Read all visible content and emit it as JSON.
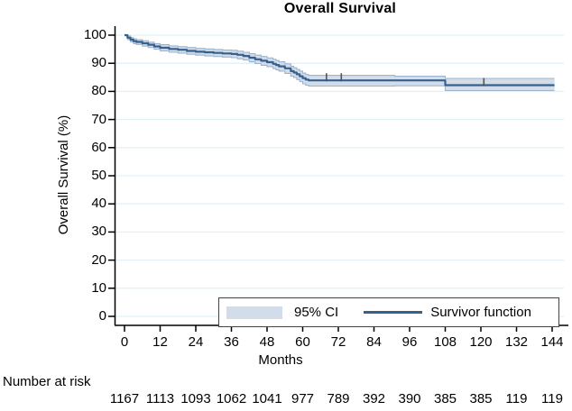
{
  "chart_data": {
    "type": "line",
    "subtype": "kaplan-meier-step",
    "title": "Overall Survival",
    "xlabel": "Months",
    "ylabel": "Overall Survival (%)",
    "xlim": [
      0,
      144
    ],
    "ylim": [
      0,
      100
    ],
    "x_ticks": [
      0,
      12,
      24,
      36,
      48,
      60,
      72,
      84,
      96,
      108,
      120,
      132,
      144
    ],
    "y_ticks": [
      0,
      10,
      20,
      30,
      40,
      50,
      60,
      70,
      80,
      90,
      100
    ],
    "grid": "horizontal-light",
    "legend": {
      "position": "inside-bottom-right",
      "ci_label": "95% CI",
      "survivor_label": "Survivor function"
    },
    "series": [
      {
        "name": "Survivor function",
        "style": "step-line",
        "points": [
          [
            0,
            100
          ],
          [
            1,
            99.1
          ],
          [
            2,
            98.4
          ],
          [
            3,
            97.9
          ],
          [
            4,
            97.6
          ],
          [
            6,
            97.1
          ],
          [
            8,
            96.6
          ],
          [
            10,
            96.0
          ],
          [
            12,
            95.5
          ],
          [
            15,
            95.1
          ],
          [
            18,
            94.8
          ],
          [
            21,
            94.4
          ],
          [
            24,
            94.1
          ],
          [
            27,
            93.9
          ],
          [
            30,
            93.7
          ],
          [
            33,
            93.5
          ],
          [
            36,
            93.3
          ],
          [
            38,
            93.0
          ],
          [
            40,
            92.6
          ],
          [
            42,
            92.0
          ],
          [
            44,
            91.4
          ],
          [
            46,
            90.9
          ],
          [
            48,
            90.4
          ],
          [
            50,
            89.8
          ],
          [
            51,
            89.4
          ],
          [
            52,
            88.9
          ],
          [
            54,
            88.2
          ],
          [
            56,
            87.2
          ],
          [
            57,
            86.7
          ],
          [
            58,
            86.1
          ],
          [
            59,
            85.4
          ],
          [
            60,
            84.7
          ],
          [
            61,
            84.2
          ],
          [
            62,
            83.9
          ],
          [
            107,
            83.9
          ],
          [
            108,
            82.2
          ],
          [
            144.8,
            82.2
          ]
        ]
      },
      {
        "name": "95% CI upper",
        "style": "band-edge",
        "points": [
          [
            0,
            100
          ],
          [
            1,
            99.7
          ],
          [
            2,
            99.1
          ],
          [
            3,
            98.7
          ],
          [
            4,
            98.4
          ],
          [
            6,
            98.0
          ],
          [
            8,
            97.5
          ],
          [
            10,
            97.0
          ],
          [
            12,
            96.6
          ],
          [
            15,
            96.2
          ],
          [
            18,
            95.9
          ],
          [
            21,
            95.6
          ],
          [
            24,
            95.3
          ],
          [
            27,
            95.1
          ],
          [
            30,
            94.9
          ],
          [
            33,
            94.7
          ],
          [
            36,
            94.6
          ],
          [
            38,
            94.3
          ],
          [
            40,
            93.9
          ],
          [
            42,
            93.4
          ],
          [
            44,
            92.9
          ],
          [
            46,
            92.4
          ],
          [
            48,
            91.9
          ],
          [
            50,
            91.4
          ],
          [
            51,
            91.0
          ],
          [
            52,
            90.5
          ],
          [
            54,
            89.8
          ],
          [
            56,
            88.9
          ],
          [
            57,
            88.4
          ],
          [
            58,
            87.8
          ],
          [
            59,
            87.2
          ],
          [
            60,
            86.5
          ],
          [
            61,
            86.0
          ],
          [
            62,
            85.7
          ],
          [
            90,
            85.7
          ],
          [
            91,
            85.4
          ],
          [
            107,
            85.4
          ],
          [
            108,
            84.6
          ],
          [
            144.8,
            84.6
          ]
        ]
      },
      {
        "name": "95% CI lower",
        "style": "band-edge",
        "points": [
          [
            0,
            100
          ],
          [
            1,
            98.4
          ],
          [
            2,
            97.6
          ],
          [
            3,
            97.0
          ],
          [
            4,
            96.7
          ],
          [
            6,
            96.1
          ],
          [
            8,
            95.6
          ],
          [
            10,
            95.0
          ],
          [
            12,
            94.4
          ],
          [
            15,
            93.9
          ],
          [
            18,
            93.6
          ],
          [
            21,
            93.2
          ],
          [
            24,
            92.9
          ],
          [
            27,
            92.6
          ],
          [
            30,
            92.4
          ],
          [
            33,
            92.2
          ],
          [
            36,
            92.0
          ],
          [
            38,
            91.6
          ],
          [
            40,
            91.2
          ],
          [
            42,
            90.5
          ],
          [
            44,
            89.9
          ],
          [
            46,
            89.3
          ],
          [
            48,
            88.8
          ],
          [
            50,
            88.1
          ],
          [
            51,
            87.7
          ],
          [
            52,
            87.2
          ],
          [
            54,
            86.4
          ],
          [
            56,
            85.4
          ],
          [
            57,
            84.9
          ],
          [
            58,
            84.2
          ],
          [
            59,
            83.5
          ],
          [
            60,
            82.7
          ],
          [
            61,
            82.2
          ],
          [
            62,
            81.9
          ],
          [
            90,
            81.9
          ],
          [
            91,
            82.0
          ],
          [
            107,
            82.0
          ],
          [
            108,
            80.3
          ],
          [
            144.8,
            80.3
          ]
        ]
      }
    ],
    "censor_marks": [
      [
        68,
        83.9
      ],
      [
        73,
        83.9
      ],
      [
        121,
        82.2
      ]
    ],
    "number_at_risk": {
      "label": "Number at risk",
      "values": [
        "1167",
        "1113",
        "1093",
        "1062",
        "1041",
        "977",
        "789",
        "392",
        "390",
        "385",
        "385",
        "119",
        "119"
      ]
    },
    "colors": {
      "line": "#36618e",
      "ci_band": "#d2dde9",
      "ci_edge": "#9fb4cc",
      "grid": "#e2f1f6",
      "axis": "#000000",
      "censor": "#4d5358",
      "legend_border": "#444444"
    }
  }
}
